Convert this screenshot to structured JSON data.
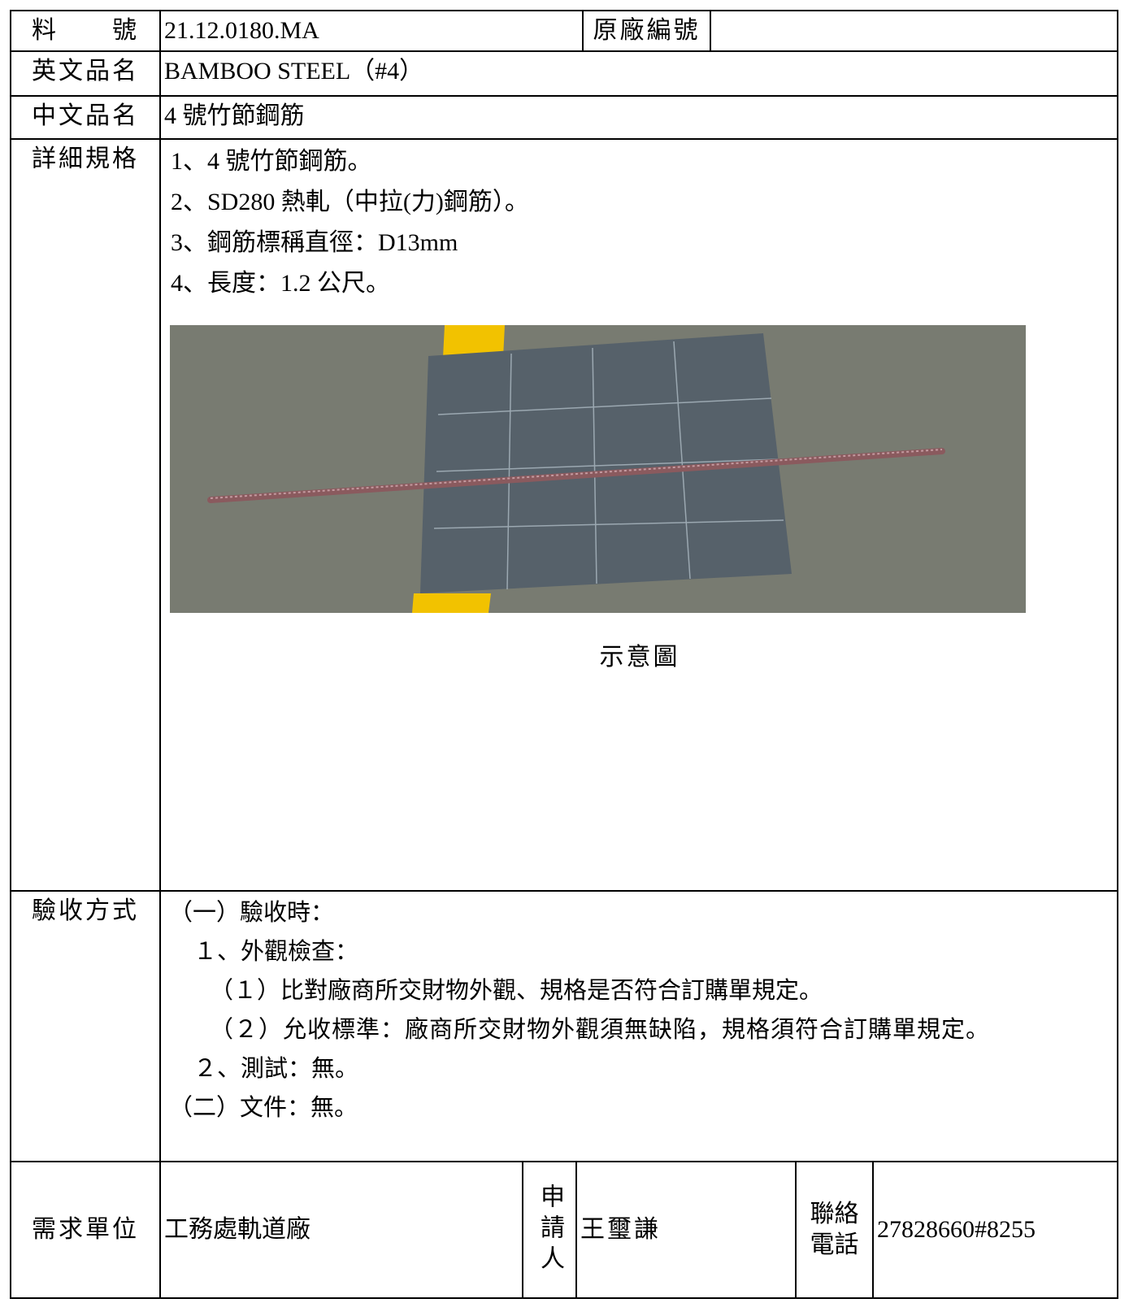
{
  "part_number": {
    "label": "料　　號",
    "value": "21.12.0180.MA"
  },
  "original_number_label": "原廠編號",
  "english_name": {
    "label": "英文品名",
    "value": "BAMBOO STEEL（#4）"
  },
  "chinese_name": {
    "label": "中文品名",
    "value": "4 號竹節鋼筋"
  },
  "specification": {
    "label": "詳細規格",
    "lines": [
      "1、4 號竹節鋼筋。",
      "2、SD280 熱軋（中拉(力)鋼筋）。",
      "3、鋼筋標稱直徑：D13mm",
      "4、長度：1.2 公尺。"
    ],
    "image_caption": "示意圖"
  },
  "acceptance": {
    "label": "驗收方式",
    "lines": [
      "（一）驗收時：",
      "１、外觀檢查：",
      "（１）比對廠商所交財物外觀、規格是否符合訂購單規定。",
      "（２）允收標準：廠商所交財物外觀須無缺陷，規格須符合訂購單規定。",
      "２、測試：無。",
      "（二）文件：無。"
    ]
  },
  "footer": {
    "unit_label": "需求單位",
    "unit": "工務處軌道廠",
    "applicant_label": "申請人",
    "applicant": "王璽謙",
    "phone_label": "聯絡電話",
    "phone": "27828660#8255"
  }
}
